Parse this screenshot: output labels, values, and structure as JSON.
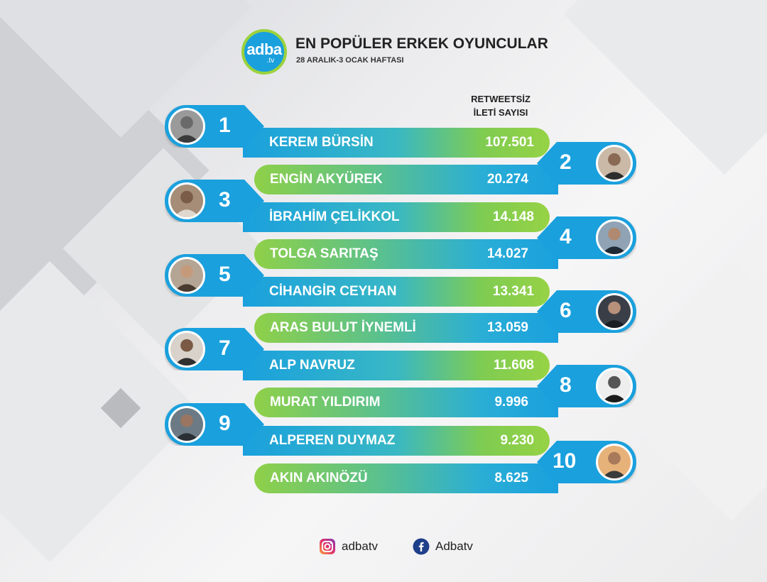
{
  "header": {
    "logo_main": "adba",
    "logo_sub": ".tv",
    "title": "EN POPÜLER ERKEK OYUNCULAR",
    "subtitle": "28 ARALIK-3 OCAK HAFTASI",
    "column_line1": "RETWEETSİZ",
    "column_line2": "İLETİ SAYISI"
  },
  "ranking": [
    {
      "rank": "1",
      "name": "KEREM BÜRSİN",
      "count": "107.501"
    },
    {
      "rank": "2",
      "name": "ENGİN AKYÜREK",
      "count": "20.274"
    },
    {
      "rank": "3",
      "name": "İBRAHİM ÇELİKKOL",
      "count": "14.148"
    },
    {
      "rank": "4",
      "name": "TOLGA SARITAŞ",
      "count": "14.027"
    },
    {
      "rank": "5",
      "name": "CİHANGİR CEYHAN",
      "count": "13.341"
    },
    {
      "rank": "6",
      "name": "ARAS BULUT İYNEMLİ",
      "count": "13.059"
    },
    {
      "rank": "7",
      "name": "ALP NAVRUZ",
      "count": "11.608"
    },
    {
      "rank": "8",
      "name": "MURAT YILDIRIM",
      "count": "9.996"
    },
    {
      "rank": "9",
      "name": "ALPEREN DUYMAZ",
      "count": "9.230"
    },
    {
      "rank": "10",
      "name": "AKIN AKINÖZÜ",
      "count": "8.625"
    }
  ],
  "footer": {
    "instagram_handle": "adbatv",
    "facebook_handle": "Adbatv",
    "instagram_icon": "instagram-icon",
    "facebook_icon": "facebook-icon"
  },
  "colors": {
    "accent_blue": "#1aa0dd",
    "accent_green": "#96d245"
  }
}
